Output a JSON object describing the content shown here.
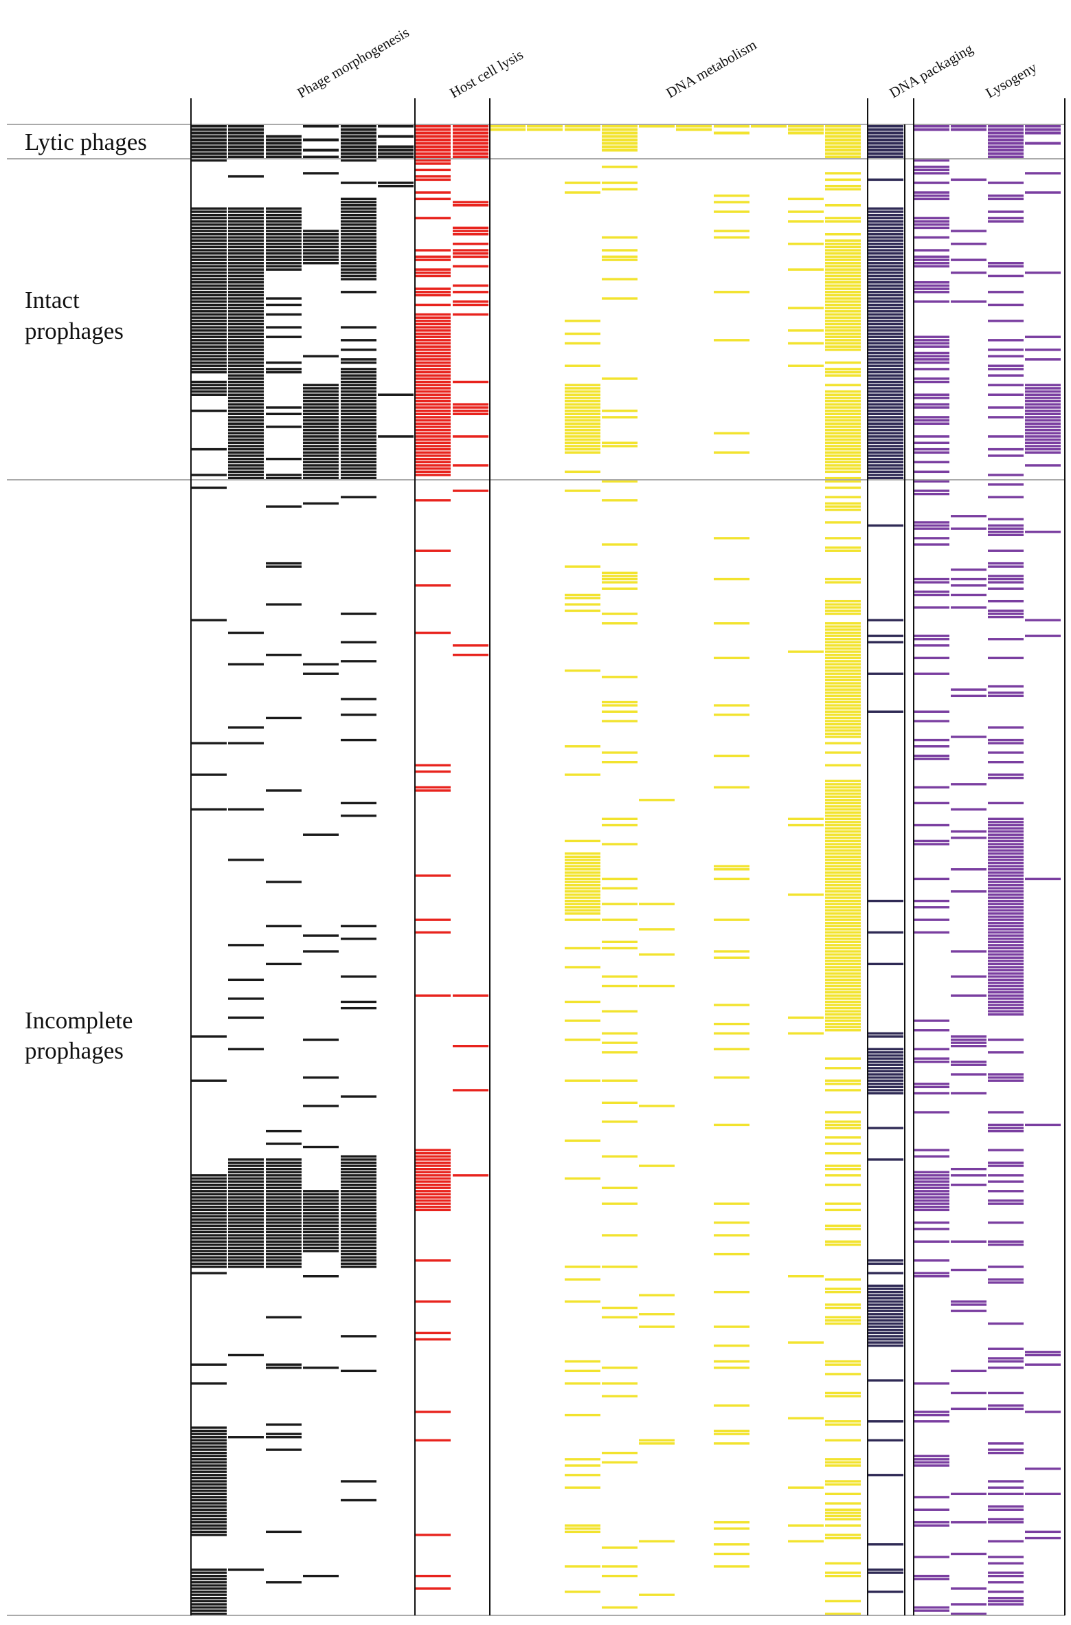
{
  "chart_data": {
    "type": "heatmap",
    "title": "",
    "columns": [
      {
        "group": "Phage morphogenesis",
        "index": 1
      },
      {
        "group": "Phage morphogenesis",
        "index": 2
      },
      {
        "group": "Phage morphogenesis",
        "index": 3
      },
      {
        "group": "Phage morphogenesis",
        "index": 4
      },
      {
        "group": "Phage morphogenesis",
        "index": 5
      },
      {
        "group": "Phage morphogenesis",
        "index": 6
      },
      {
        "group": "Host cell lysis",
        "index": 1
      },
      {
        "group": "Host cell lysis",
        "index": 2
      },
      {
        "group": "DNA metabolism",
        "index": 1
      },
      {
        "group": "DNA metabolism",
        "index": 2
      },
      {
        "group": "DNA metabolism",
        "index": 3
      },
      {
        "group": "DNA metabolism",
        "index": 4
      },
      {
        "group": "DNA metabolism",
        "index": 5
      },
      {
        "group": "DNA metabolism",
        "index": 6
      },
      {
        "group": "DNA metabolism",
        "index": 7
      },
      {
        "group": "DNA metabolism",
        "index": 8
      },
      {
        "group": "DNA metabolism",
        "index": 9
      },
      {
        "group": "DNA metabolism",
        "index": 10
      },
      {
        "group": "DNA packaging",
        "index": 1
      },
      {
        "group": "Lysogeny",
        "index": 1
      },
      {
        "group": "Lysogeny",
        "index": 2
      },
      {
        "group": "Lysogeny",
        "index": 3
      },
      {
        "group": "Lysogeny",
        "index": 4
      }
    ],
    "groups": [
      {
        "name": "Phage morphogenesis",
        "color": "#1a1a1a",
        "label": "Phage morphogenesis"
      },
      {
        "name": "Host cell lysis",
        "color": "#e8231d",
        "label": "Host cell lysis"
      },
      {
        "name": "DNA metabolism",
        "color": "#f2e32e",
        "label": "DNA metabolism"
      },
      {
        "name": "DNA packaging",
        "color": "#2f2a55",
        "label": "DNA packaging"
      },
      {
        "name": "Lysogeny",
        "color": "#7a3ea0",
        "label": "Lysogeny"
      }
    ],
    "row_groups": [
      {
        "name": "Lytic phages",
        "label": "Lytic phages",
        "rows": 10
      },
      {
        "name": "Intact prophages",
        "label_lines": [
          "Intact",
          "prophages"
        ],
        "rows": 100
      },
      {
        "name": "Incomplete prophages",
        "label_lines": [
          "Incomplete",
          "prophages"
        ],
        "rows": 360
      }
    ],
    "cells": {
      "lytic": [
        [
          1,
          1,
          0,
          1,
          1,
          1,
          1,
          1,
          1,
          1,
          1,
          1,
          1,
          1,
          1,
          1,
          1,
          1,
          1,
          1,
          1,
          1,
          1
        ],
        [
          1,
          1,
          0,
          0,
          1,
          0,
          1,
          1,
          1,
          1,
          1,
          1,
          0,
          1,
          0,
          0,
          1,
          1,
          1,
          1,
          1,
          1,
          1
        ],
        [
          1,
          1,
          0,
          0,
          1,
          0,
          1,
          1,
          0,
          0,
          0,
          1,
          0,
          0,
          1,
          0,
          1,
          1,
          1,
          0,
          0,
          1,
          1
        ],
        [
          1,
          1,
          1,
          0,
          1,
          1,
          1,
          1,
          0,
          0,
          0,
          1,
          0,
          0,
          0,
          0,
          0,
          1,
          1,
          0,
          0,
          1,
          0
        ],
        [
          1,
          1,
          1,
          1,
          1,
          0,
          1,
          1,
          0,
          0,
          0,
          1,
          0,
          0,
          0,
          0,
          0,
          1,
          1,
          0,
          0,
          1,
          0
        ],
        [
          1,
          1,
          1,
          0,
          1,
          0,
          1,
          1,
          0,
          0,
          0,
          1,
          0,
          0,
          0,
          0,
          0,
          1,
          1,
          0,
          0,
          1,
          1
        ],
        [
          1,
          1,
          1,
          0,
          1,
          1,
          1,
          1,
          0,
          0,
          0,
          1,
          0,
          0,
          0,
          0,
          0,
          1,
          1,
          0,
          0,
          1,
          0
        ],
        [
          1,
          1,
          1,
          1,
          1,
          1,
          1,
          1,
          0,
          0,
          0,
          1,
          0,
          0,
          0,
          0,
          0,
          1,
          1,
          0,
          0,
          1,
          0
        ],
        [
          1,
          1,
          1,
          0,
          1,
          1,
          1,
          1,
          0,
          0,
          0,
          0,
          0,
          0,
          0,
          0,
          0,
          1,
          1,
          0,
          0,
          1,
          0
        ],
        [
          1,
          1,
          1,
          1,
          1,
          1,
          1,
          1,
          0,
          0,
          0,
          0,
          0,
          0,
          0,
          0,
          0,
          1,
          1,
          0,
          0,
          1,
          0
        ]
      ],
      "intact_blocks": [
        {
          "col": 0,
          "rows": [
            [
              15,
              67
            ],
            [
              70,
              74
            ]
          ]
        },
        {
          "col": 1,
          "rows": [
            [
              15,
              100
            ]
          ]
        },
        {
          "col": 2,
          "rows": [
            [
              15,
              35
            ]
          ]
        },
        {
          "col": 3,
          "rows": [
            [
              22,
              33
            ],
            [
              70,
              100
            ]
          ]
        },
        {
          "col": 4,
          "rows": [
            [
              15,
              35
            ],
            [
              65,
              100
            ]
          ]
        },
        {
          "col": 6,
          "rows": [
            [
              48,
              63
            ],
            [
              66,
              98
            ]
          ]
        },
        {
          "col": 10,
          "rows": [
            [
              70,
              92
            ]
          ]
        },
        {
          "col": 17,
          "rows": [
            [
              25,
              60
            ],
            [
              72,
              98
            ]
          ]
        },
        {
          "col": 18,
          "rows": [
            [
              15,
              100
            ]
          ]
        },
        {
          "col": 22,
          "rows": [
            [
              70,
              92
            ]
          ]
        }
      ],
      "incomplete_blocks": [
        {
          "col": 10,
          "rows": [
            [
              118,
              138
            ]
          ]
        },
        {
          "col": 17,
          "rows": [
            [
              45,
              82
            ],
            [
              95,
              175
            ]
          ]
        },
        {
          "col": 21,
          "rows": [
            [
              108,
              170
            ]
          ]
        },
        {
          "col": 18,
          "rows": [
            [
              180,
              195
            ],
            [
              255,
              275
            ]
          ]
        },
        {
          "col": 0,
          "rows": [
            [
              220,
              250
            ],
            [
              300,
              335
            ],
            [
              345,
              360
            ]
          ]
        },
        {
          "col": 1,
          "rows": [
            [
              215,
              250
            ]
          ]
        },
        {
          "col": 2,
          "rows": [
            [
              215,
              250
            ]
          ]
        },
        {
          "col": 3,
          "rows": [
            [
              225,
              245
            ]
          ]
        },
        {
          "col": 4,
          "rows": [
            [
              215,
              250
            ]
          ]
        },
        {
          "col": 6,
          "rows": [
            [
              212,
              232
            ]
          ]
        },
        {
          "col": 19,
          "rows": [
            [
              220,
              232
            ]
          ]
        }
      ]
    }
  }
}
